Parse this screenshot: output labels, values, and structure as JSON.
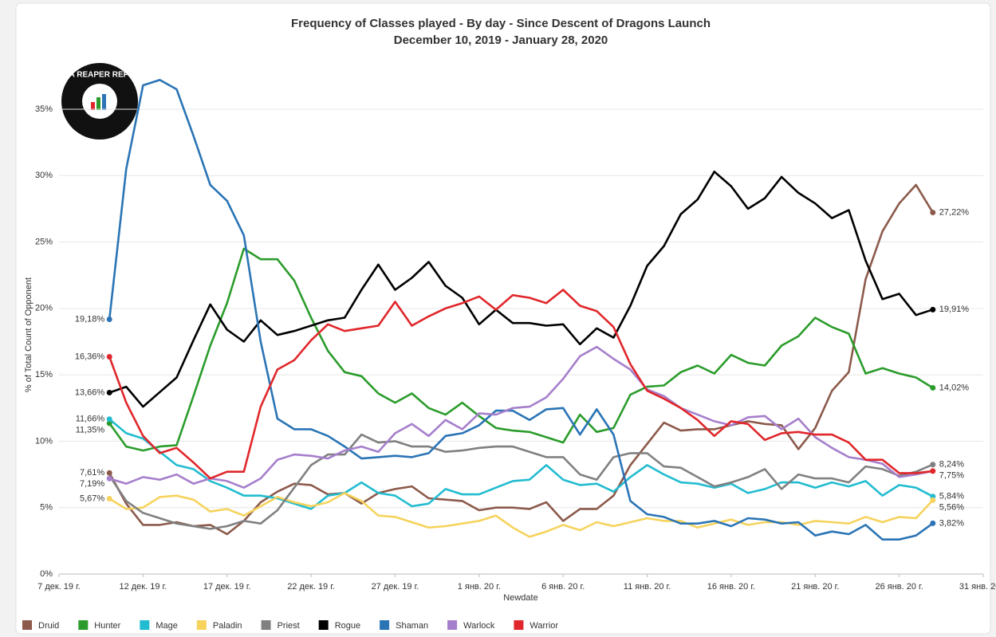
{
  "chart_data": {
    "type": "line",
    "title": "Frequency of Classes played - By day - Since Descent of Dragons Launch",
    "subtitle": "December 10, 2019 - January 28, 2020",
    "annotations": [
      "DATA REAPER REPORT"
    ],
    "x_label": "Newdate",
    "y_label": "% of Total Count of Opponent",
    "x": [
      "2019-12-10",
      "2019-12-11",
      "2019-12-12",
      "2019-12-13",
      "2019-12-14",
      "2019-12-15",
      "2019-12-16",
      "2019-12-17",
      "2019-12-18",
      "2019-12-19",
      "2019-12-20",
      "2019-12-21",
      "2019-12-22",
      "2019-12-23",
      "2019-12-24",
      "2019-12-25",
      "2019-12-26",
      "2019-12-27",
      "2019-12-28",
      "2019-12-29",
      "2019-12-30",
      "2019-12-31",
      "2020-01-01",
      "2020-01-02",
      "2020-01-03",
      "2020-01-04",
      "2020-01-05",
      "2020-01-06",
      "2020-01-07",
      "2020-01-08",
      "2020-01-09",
      "2020-01-10",
      "2020-01-11",
      "2020-01-12",
      "2020-01-13",
      "2020-01-14",
      "2020-01-15",
      "2020-01-16",
      "2020-01-17",
      "2020-01-18",
      "2020-01-19",
      "2020-01-20",
      "2020-01-21",
      "2020-01-22",
      "2020-01-23",
      "2020-01-24",
      "2020-01-25",
      "2020-01-26",
      "2020-01-27",
      "2020-01-28"
    ],
    "xlim": [
      "2019-12-07",
      "2020-01-31"
    ],
    "xticks": [
      {
        "value": "2019-12-07",
        "label": "7 дек. 19 г."
      },
      {
        "value": "2019-12-12",
        "label": "12 дек. 19 г."
      },
      {
        "value": "2019-12-17",
        "label": "17 дек. 19 г."
      },
      {
        "value": "2019-12-22",
        "label": "22 дек. 19 г."
      },
      {
        "value": "2019-12-27",
        "label": "27 дек. 19 г."
      },
      {
        "value": "2020-01-01",
        "label": "1 янв. 20 г."
      },
      {
        "value": "2020-01-06",
        "label": "6 янв. 20 г."
      },
      {
        "value": "2020-01-11",
        "label": "11 янв. 20 г."
      },
      {
        "value": "2020-01-16",
        "label": "16 янв. 20 г."
      },
      {
        "value": "2020-01-21",
        "label": "21 янв. 20 г."
      },
      {
        "value": "2020-01-26",
        "label": "26 янв. 20 г."
      },
      {
        "value": "2020-01-31",
        "label": "31 янв. 20 г."
      }
    ],
    "ylim": [
      0,
      38
    ],
    "yticks": [
      {
        "value": 0,
        "label": "0%"
      },
      {
        "value": 5,
        "label": "5%"
      },
      {
        "value": 10,
        "label": "10%"
      },
      {
        "value": 15,
        "label": "15%"
      },
      {
        "value": 20,
        "label": "20%"
      },
      {
        "value": 25,
        "label": "25%"
      },
      {
        "value": 30,
        "label": "30%"
      },
      {
        "value": 35,
        "label": "35%"
      }
    ],
    "grid": true,
    "legend": "bottom-left",
    "series": [
      {
        "name": "Druid",
        "color": "#8c5a4b",
        "values": [
          7.61,
          5.3,
          3.7,
          3.7,
          3.9,
          3.6,
          3.7,
          3.0,
          4.0,
          5.4,
          6.2,
          6.8,
          6.7,
          6.0,
          6.1,
          5.3,
          6.1,
          6.4,
          6.6,
          5.7,
          5.6,
          5.5,
          4.8,
          5.0,
          5.0,
          4.9,
          5.4,
          4.0,
          4.9,
          4.9,
          5.9,
          8.2,
          9.8,
          11.4,
          10.8,
          10.9,
          10.9,
          11.2,
          11.5,
          11.3,
          11.2,
          9.4,
          11.0,
          13.8,
          15.2,
          22.2,
          25.8,
          27.9,
          29.3,
          27.22
        ],
        "value_labels": [
          "7,61%",
          null,
          null,
          null,
          null,
          null,
          null,
          null,
          null,
          null,
          null,
          null,
          null,
          null,
          null,
          null,
          null,
          null,
          null,
          null,
          null,
          null,
          null,
          null,
          null,
          null,
          null,
          null,
          null,
          null,
          null,
          null,
          null,
          null,
          null,
          null,
          null,
          null,
          null,
          null,
          null,
          null,
          null,
          null,
          null,
          null,
          null,
          null,
          null,
          "27,22%"
        ]
      },
      {
        "name": "Hunter",
        "color": "#2b9c2b",
        "values": [
          11.35,
          9.6,
          9.3,
          9.6,
          9.7,
          13.4,
          17.2,
          20.4,
          24.5,
          23.7,
          23.7,
          22.1,
          19.3,
          16.8,
          15.2,
          14.9,
          13.6,
          12.9,
          13.6,
          12.5,
          12.0,
          12.9,
          11.9,
          11.0,
          10.8,
          10.7,
          10.3,
          9.9,
          12.0,
          10.7,
          11.0,
          13.5,
          14.1,
          14.2,
          15.2,
          15.7,
          15.1,
          16.5,
          15.9,
          15.7,
          17.2,
          17.9,
          19.3,
          18.6,
          18.1,
          15.1,
          15.5,
          15.1,
          14.8,
          14.02
        ],
        "value_labels": [
          "11,35%",
          null,
          null,
          null,
          null,
          null,
          null,
          null,
          null,
          null,
          null,
          null,
          null,
          null,
          null,
          null,
          null,
          null,
          null,
          null,
          null,
          null,
          null,
          null,
          null,
          null,
          null,
          null,
          null,
          null,
          null,
          null,
          null,
          null,
          null,
          null,
          null,
          null,
          null,
          null,
          null,
          null,
          null,
          null,
          null,
          null,
          null,
          null,
          null,
          "14,02%"
        ]
      },
      {
        "name": "Mage",
        "color": "#22bcd0",
        "values": [
          11.66,
          10.6,
          10.2,
          9.2,
          8.2,
          7.9,
          7.0,
          6.5,
          5.9,
          5.9,
          5.7,
          5.3,
          4.9,
          5.9,
          6.1,
          6.9,
          6.1,
          5.9,
          5.1,
          5.3,
          6.4,
          6.0,
          6.0,
          6.5,
          7.0,
          7.1,
          8.2,
          7.1,
          6.7,
          6.8,
          6.2,
          7.3,
          8.2,
          7.5,
          6.9,
          6.8,
          6.5,
          6.8,
          6.1,
          6.4,
          6.9,
          6.9,
          6.5,
          6.9,
          6.6,
          7.0,
          5.9,
          6.7,
          6.5,
          5.84
        ],
        "value_labels": [
          "11,66%",
          null,
          null,
          null,
          null,
          null,
          null,
          null,
          null,
          null,
          null,
          null,
          null,
          null,
          null,
          null,
          null,
          null,
          null,
          null,
          null,
          null,
          null,
          null,
          null,
          null,
          null,
          null,
          null,
          null,
          null,
          null,
          null,
          null,
          null,
          null,
          null,
          null,
          null,
          null,
          null,
          null,
          null,
          null,
          null,
          null,
          null,
          null,
          null,
          "5,84%"
        ]
      },
      {
        "name": "Paladin",
        "color": "#f6d35d",
        "values": [
          5.67,
          4.9,
          5.0,
          5.8,
          5.9,
          5.6,
          4.7,
          4.9,
          4.4,
          5.1,
          5.8,
          5.4,
          5.1,
          5.4,
          6.1,
          5.5,
          4.4,
          4.3,
          3.9,
          3.5,
          3.6,
          3.8,
          4.0,
          4.4,
          3.5,
          2.8,
          3.2,
          3.7,
          3.3,
          3.9,
          3.6,
          3.9,
          4.2,
          4.0,
          4.0,
          3.5,
          3.8,
          4.1,
          3.7,
          3.9,
          3.9,
          3.7,
          4.0,
          3.9,
          3.8,
          4.3,
          3.9,
          4.3,
          4.2,
          5.56
        ],
        "value_labels": [
          "5,67%",
          null,
          null,
          null,
          null,
          null,
          null,
          null,
          null,
          null,
          null,
          null,
          null,
          null,
          null,
          null,
          null,
          null,
          null,
          null,
          null,
          null,
          null,
          null,
          null,
          null,
          null,
          null,
          null,
          null,
          null,
          null,
          null,
          null,
          null,
          null,
          null,
          null,
          null,
          null,
          null,
          null,
          null,
          null,
          null,
          null,
          null,
          null,
          null,
          "5,56%"
        ]
      },
      {
        "name": "Priest",
        "color": "#808080",
        "values": [
          7.4,
          5.5,
          4.6,
          4.2,
          3.8,
          3.6,
          3.4,
          3.6,
          4.0,
          3.8,
          4.8,
          6.5,
          8.2,
          9.0,
          9.0,
          10.5,
          9.9,
          10.0,
          9.6,
          9.6,
          9.2,
          9.3,
          9.5,
          9.6,
          9.6,
          9.2,
          8.8,
          8.8,
          7.5,
          7.1,
          8.8,
          9.1,
          9.1,
          8.1,
          8.0,
          7.3,
          6.6,
          6.9,
          7.3,
          7.9,
          6.4,
          7.5,
          7.2,
          7.2,
          6.9,
          8.1,
          7.9,
          7.4,
          7.7,
          8.24
        ],
        "value_labels": [
          null,
          null,
          null,
          null,
          null,
          null,
          null,
          null,
          null,
          null,
          null,
          null,
          null,
          null,
          null,
          null,
          null,
          null,
          null,
          null,
          null,
          null,
          null,
          null,
          null,
          null,
          null,
          null,
          null,
          null,
          null,
          null,
          null,
          null,
          null,
          null,
          null,
          null,
          null,
          null,
          null,
          null,
          null,
          null,
          null,
          null,
          null,
          null,
          null,
          "8,24%"
        ]
      },
      {
        "name": "Rogue",
        "color": "#000000",
        "values": [
          13.66,
          14.1,
          12.6,
          13.7,
          14.8,
          17.6,
          20.3,
          18.4,
          17.5,
          19.1,
          18.0,
          18.3,
          18.7,
          19.1,
          19.3,
          21.4,
          23.3,
          21.4,
          22.3,
          23.5,
          21.7,
          20.8,
          18.8,
          19.9,
          18.9,
          18.9,
          18.7,
          18.8,
          17.3,
          18.5,
          17.8,
          20.2,
          23.2,
          24.7,
          27.1,
          28.2,
          30.3,
          29.2,
          27.5,
          28.3,
          29.9,
          28.7,
          27.9,
          26.8,
          27.4,
          23.6,
          20.7,
          21.1,
          19.5,
          19.91
        ],
        "value_labels": [
          "13,66%",
          null,
          null,
          null,
          null,
          null,
          null,
          null,
          null,
          null,
          null,
          null,
          null,
          null,
          null,
          null,
          null,
          null,
          null,
          null,
          null,
          null,
          null,
          null,
          null,
          null,
          null,
          null,
          null,
          null,
          null,
          null,
          null,
          null,
          null,
          null,
          null,
          null,
          null,
          null,
          null,
          null,
          null,
          null,
          null,
          null,
          null,
          null,
          null,
          "19,91%"
        ]
      },
      {
        "name": "Shaman",
        "color": "#2a74b5",
        "values": [
          19.18,
          30.5,
          36.8,
          37.2,
          36.5,
          33.0,
          29.3,
          28.1,
          25.5,
          17.5,
          11.7,
          10.9,
          10.9,
          10.4,
          9.6,
          8.7,
          8.8,
          8.9,
          8.8,
          9.1,
          10.4,
          10.6,
          11.2,
          12.3,
          12.3,
          11.6,
          12.4,
          12.5,
          10.5,
          12.4,
          10.5,
          5.5,
          4.5,
          4.3,
          3.8,
          3.8,
          4.0,
          3.6,
          4.2,
          4.1,
          3.8,
          3.9,
          2.9,
          3.2,
          3.0,
          3.7,
          2.6,
          2.6,
          2.9,
          3.82
        ],
        "value_labels": [
          "19,18%",
          null,
          null,
          null,
          null,
          null,
          null,
          null,
          null,
          null,
          null,
          null,
          null,
          null,
          null,
          null,
          null,
          null,
          null,
          null,
          null,
          null,
          null,
          null,
          null,
          null,
          null,
          null,
          null,
          null,
          null,
          null,
          null,
          null,
          null,
          null,
          null,
          null,
          null,
          null,
          null,
          null,
          null,
          null,
          null,
          null,
          null,
          null,
          null,
          "3,82%"
        ]
      },
      {
        "name": "Warlock",
        "color": "#a67fcc",
        "values": [
          7.19,
          6.8,
          7.3,
          7.1,
          7.5,
          6.8,
          7.2,
          7.0,
          6.5,
          7.2,
          8.6,
          9.0,
          8.9,
          8.7,
          9.3,
          9.6,
          9.2,
          10.6,
          11.3,
          10.4,
          11.6,
          10.9,
          12.1,
          12.0,
          12.5,
          12.6,
          13.3,
          14.7,
          16.4,
          17.1,
          16.2,
          15.4,
          13.9,
          13.4,
          12.5,
          12.0,
          11.5,
          11.2,
          11.8,
          11.9,
          10.9,
          11.7,
          10.3,
          9.5,
          8.8,
          8.6,
          8.3,
          7.3,
          7.5,
          7.75
        ],
        "value_labels": [
          "7,19%",
          null,
          null,
          null,
          null,
          null,
          null,
          null,
          null,
          null,
          null,
          null,
          null,
          null,
          null,
          null,
          null,
          null,
          null,
          null,
          null,
          null,
          null,
          null,
          null,
          null,
          null,
          null,
          null,
          null,
          null,
          null,
          null,
          null,
          null,
          null,
          null,
          null,
          null,
          null,
          null,
          null,
          null,
          null,
          null,
          null,
          null,
          null,
          null,
          null
        ]
      },
      {
        "name": "Warrior",
        "color": "#e0272b",
        "values": [
          16.36,
          12.9,
          10.4,
          9.1,
          9.5,
          8.4,
          7.2,
          7.7,
          7.7,
          12.6,
          15.4,
          16.1,
          17.6,
          18.8,
          18.3,
          18.5,
          18.7,
          20.5,
          18.7,
          19.4,
          20.0,
          20.4,
          20.9,
          19.9,
          21.0,
          20.8,
          20.4,
          21.4,
          20.2,
          19.8,
          18.6,
          15.8,
          13.8,
          13.2,
          12.5,
          11.6,
          10.4,
          11.5,
          11.3,
          10.1,
          10.6,
          10.7,
          10.5,
          10.5,
          9.9,
          8.6,
          8.6,
          7.6,
          7.6,
          7.75
        ],
        "value_labels": [
          "16,36%",
          null,
          null,
          null,
          null,
          null,
          null,
          null,
          null,
          null,
          null,
          null,
          null,
          null,
          null,
          null,
          null,
          null,
          null,
          null,
          null,
          null,
          null,
          null,
          null,
          null,
          null,
          null,
          null,
          null,
          null,
          null,
          null,
          null,
          null,
          null,
          null,
          null,
          null,
          null,
          null,
          null,
          null,
          null,
          null,
          null,
          null,
          null,
          null,
          "7,75%"
        ]
      }
    ]
  }
}
